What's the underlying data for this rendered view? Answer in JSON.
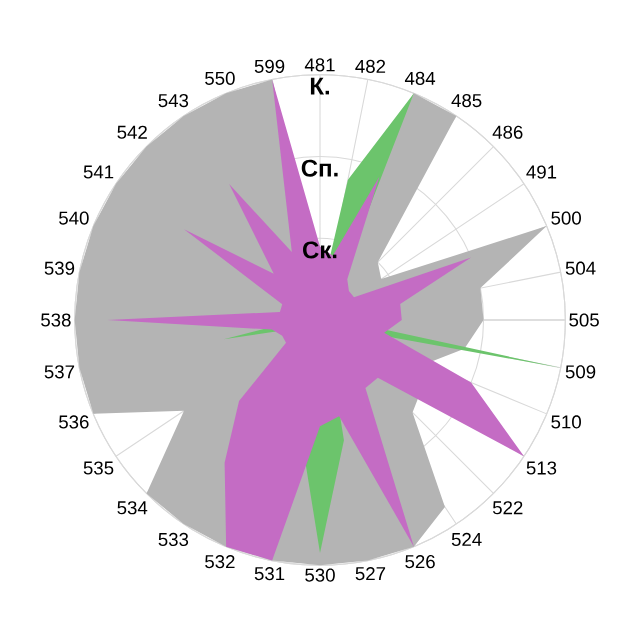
{
  "chart_data": {
    "type": "radar",
    "categories": [
      "481",
      "482",
      "484",
      "485",
      "486",
      "491",
      "500",
      "504",
      "505",
      "509",
      "510",
      "513",
      "522",
      "524",
      "526",
      "527",
      "530",
      "531",
      "532",
      "533",
      "534",
      "535",
      "536",
      "537",
      "538",
      "539",
      "540",
      "541",
      "542",
      "543",
      "550",
      "599"
    ],
    "ylim": [
      0,
      3
    ],
    "yticks": [
      {
        "value": 1,
        "label": "Ск."
      },
      {
        "value": 2,
        "label": "Сп."
      },
      {
        "value": 3,
        "label": "К."
      }
    ],
    "grid": true,
    "series": [
      {
        "color": "#b4b4b4",
        "values": [
          0.5,
          0.6,
          3,
          3,
          1.0,
          0.9,
          3,
          2,
          2,
          1.8,
          1.4,
          1.5,
          1.6,
          2.75,
          3,
          3,
          3,
          3,
          3,
          3,
          3,
          2,
          3,
          3,
          3,
          3,
          3,
          3,
          3,
          3,
          3,
          3
        ]
      },
      {
        "color": "#6cc46c",
        "values": [
          0.25,
          1.75,
          3,
          0.3,
          0.25,
          0.25,
          0.25,
          0.25,
          0.25,
          3,
          0.25,
          0.25,
          0.25,
          0.25,
          0.25,
          1.5,
          2.85,
          1.3,
          0.25,
          0.25,
          0.25,
          0.25,
          0.25,
          1.2,
          0.25,
          0.25,
          0.25,
          0.25,
          0.25,
          0.25,
          0.25,
          0.25
        ]
      },
      {
        "color": "#c46cc4",
        "values": [
          0.9,
          0.8,
          1.9,
          0.6,
          0.5,
          0.5,
          2,
          1.0,
          1.0,
          0.8,
          2,
          3,
          1.0,
          1.0,
          3,
          1.2,
          1.3,
          3,
          3,
          2.1,
          1.4,
          0.5,
          0.5,
          0.6,
          2.6,
          0.5,
          0.5,
          2,
          0.8,
          2,
          0.9,
          3
        ]
      }
    ]
  }
}
